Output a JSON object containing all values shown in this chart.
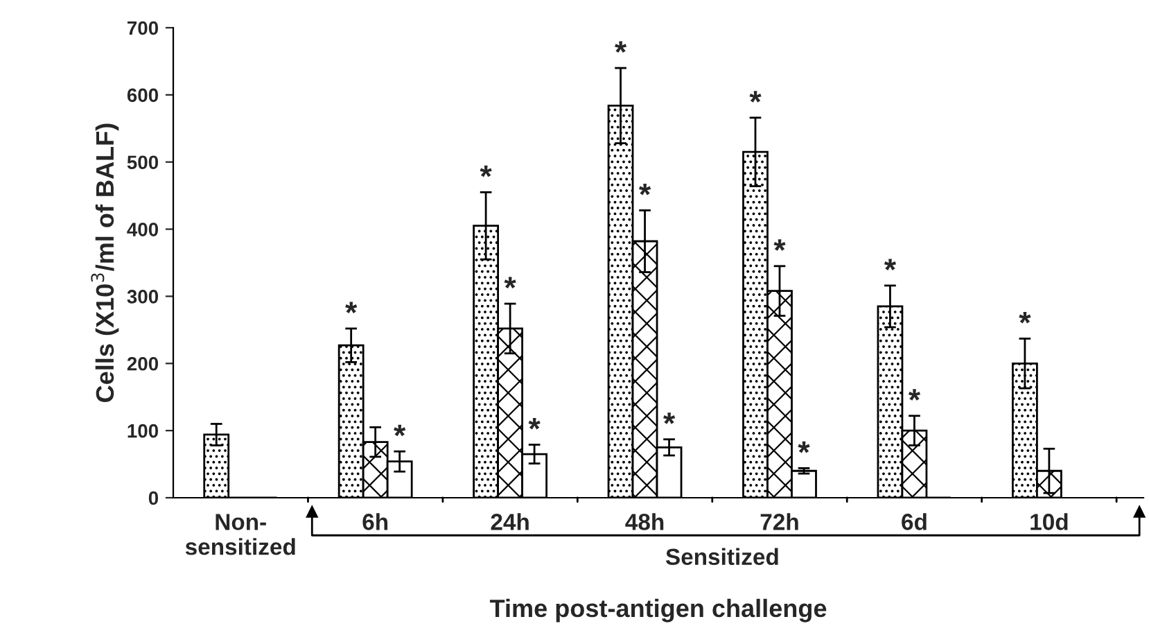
{
  "chart_data": {
    "type": "bar",
    "xlabel": "Time post-antigen challenge",
    "ylabel": "Cells (X10$^{3}$/ml of BALF)",
    "categories": [
      "Non-\nsensitized",
      "6h",
      "24h",
      "48h",
      "72h",
      "6d",
      "10d"
    ],
    "series": [
      {
        "color": "#000000",
        "values": [
          94,
          227,
          405,
          584,
          515,
          285,
          200
        ],
        "errors": [
          16,
          25,
          50,
          56,
          51,
          31,
          37
        ],
        "value_labels": [
          null,
          "*",
          "*",
          "*",
          "*",
          "*",
          "*"
        ]
      },
      {
        "color": "#000000",
        "values": [
          0,
          83,
          252,
          382,
          308,
          100,
          40
        ],
        "errors": [
          null,
          22,
          37,
          46,
          37,
          22,
          33
        ],
        "value_labels": [
          null,
          null,
          "*",
          "*",
          "*",
          "*",
          null
        ]
      },
      {
        "color": "#000000",
        "values": [
          0,
          54,
          65,
          75,
          40,
          0,
          null
        ],
        "errors": [
          null,
          15,
          14,
          12,
          4,
          null,
          null
        ],
        "value_labels": [
          null,
          "*",
          "*",
          "*",
          "*",
          null,
          null
        ]
      }
    ],
    "ylim": [
      0,
      700
    ],
    "yticks": [
      0,
      100,
      200,
      300,
      400,
      500,
      600,
      700
    ],
    "grid": false,
    "legend": false,
    "annotations": [
      "Sensitized"
    ]
  }
}
